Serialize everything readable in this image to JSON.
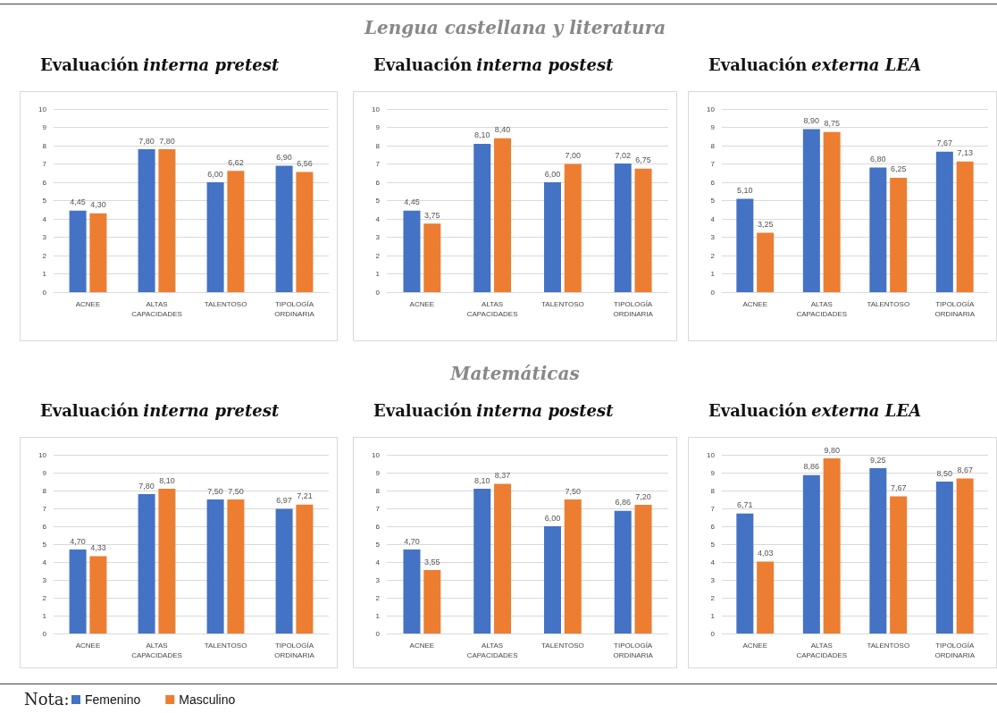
{
  "chart_data": [
    {
      "type": "bar",
      "title": "Evaluación interna pretest",
      "categories": [
        "ACNEE",
        "ALTAS CAPACIDADES",
        "TALENTOSO",
        "TIPOLOGÍA ORDINARIA"
      ],
      "series": [
        {
          "color": "#4472c4",
          "values": [
            4.45,
            7.8,
            6.0,
            6.9
          ],
          "value_labels": [
            "4,45",
            "7,80",
            "6,00",
            "6,90"
          ]
        },
        {
          "color": "#ed7d31",
          "values": [
            4.3,
            7.8,
            6.62,
            6.56
          ],
          "value_labels": [
            "4,30",
            "7,80",
            "6,62",
            "6,56"
          ]
        }
      ],
      "ylim": [
        0,
        10
      ],
      "yticks": [
        0,
        1,
        2,
        3,
        4,
        5,
        6,
        7,
        8,
        9,
        10
      ],
      "grid": "y"
    },
    {
      "type": "bar",
      "title": "Evaluación interna postest",
      "annotations": [
        "Lengua castellana y literatura"
      ],
      "categories": [
        "ACNEE",
        "ALTAS CAPACIDADES",
        "TALENTOSO",
        "TIPOLOGÍA ORDINARIA"
      ],
      "series": [
        {
          "color": "#4472c4",
          "values": [
            4.45,
            8.1,
            6.0,
            7.02
          ],
          "value_labels": [
            "4,45",
            "8,10",
            "6,00",
            "7,02"
          ]
        },
        {
          "color": "#ed7d31",
          "values": [
            3.75,
            8.4,
            7.0,
            6.75
          ],
          "value_labels": [
            "3,75",
            "8,40",
            "7,00",
            "6,75"
          ]
        }
      ],
      "ylim": [
        0,
        10
      ],
      "yticks": [
        0,
        1,
        2,
        3,
        4,
        5,
        6,
        7,
        8,
        9,
        10
      ],
      "grid": "y"
    },
    {
      "type": "bar",
      "title": "Evaluación externa LEA",
      "categories": [
        "ACNEE",
        "ALTAS CAPACIDADES",
        "TALENTOSO",
        "TIPOLOGÍA ORDINARIA"
      ],
      "series": [
        {
          "color": "#4472c4",
          "values": [
            5.1,
            8.9,
            6.8,
            7.67
          ],
          "value_labels": [
            "5,10",
            "8,90",
            "6,80",
            "7,67"
          ]
        },
        {
          "color": "#ed7d31",
          "values": [
            3.25,
            8.75,
            6.25,
            7.13
          ],
          "value_labels": [
            "3,25",
            "8,75",
            "6,25",
            "7,13"
          ]
        }
      ],
      "ylim": [
        0,
        10
      ],
      "yticks": [
        0,
        1,
        2,
        3,
        4,
        5,
        6,
        7,
        8,
        9,
        10
      ],
      "grid": "y"
    },
    {
      "type": "bar",
      "title": "Evaluación interna pretest",
      "annotations": [
        "Nota:"
      ],
      "categories": [
        "ACNEE",
        "ALTAS CAPACIDADES",
        "TALENTOSO",
        "TIPOLOGÍA ORDINARIA"
      ],
      "series": [
        {
          "name": "Femenino",
          "color": "#4472c4",
          "values": [
            4.7,
            7.8,
            7.5,
            6.97
          ],
          "value_labels": [
            "4,70",
            "7,80",
            "7,50",
            "6,97"
          ]
        },
        {
          "name": "Masculino",
          "color": "#ed7d31",
          "values": [
            4.33,
            8.1,
            7.5,
            7.21
          ],
          "value_labels": [
            "4,33",
            "8,10",
            "7,50",
            "7,21"
          ]
        }
      ],
      "ylim": [
        0,
        10
      ],
      "yticks": [
        0,
        1,
        2,
        3,
        4,
        5,
        6,
        7,
        8,
        9,
        10
      ],
      "grid": "y",
      "legend": "bottom"
    },
    {
      "type": "bar",
      "title": "Evaluación interna postest",
      "annotations": [
        "Matemáticas"
      ],
      "categories": [
        "ACNEE",
        "ALTAS CAPACIDADES",
        "TALENTOSO",
        "TIPOLOGÍA ORDINARIA"
      ],
      "series": [
        {
          "color": "#4472c4",
          "values": [
            4.7,
            8.1,
            6.0,
            6.86
          ],
          "value_labels": [
            "4,70",
            "8,10",
            "6,00",
            "6,86"
          ]
        },
        {
          "color": "#ed7d31",
          "values": [
            3.55,
            8.37,
            7.5,
            7.2
          ],
          "value_labels": [
            "3,55",
            "8,37",
            "7,50",
            "7,20"
          ]
        }
      ],
      "ylim": [
        0,
        10
      ],
      "yticks": [
        0,
        1,
        2,
        3,
        4,
        5,
        6,
        7,
        8,
        9,
        10
      ],
      "grid": "y"
    },
    {
      "type": "bar",
      "title": "Evaluación externa LEA",
      "categories": [
        "ACNEE",
        "ALTAS CAPACIDADES",
        "TALENTOSO",
        "TIPOLOGÍA ORDINARIA"
      ],
      "series": [
        {
          "color": "#4472c4",
          "values": [
            6.71,
            8.86,
            9.25,
            8.5
          ],
          "value_labels": [
            "6,71",
            "8,86",
            "9,25",
            "8,50"
          ]
        },
        {
          "color": "#ed7d31",
          "values": [
            4.03,
            9.8,
            7.67,
            8.67
          ],
          "value_labels": [
            "4,03",
            "9,80",
            "7,67",
            "8,67"
          ]
        }
      ],
      "ylim": [
        0,
        10
      ],
      "yticks": [
        0,
        1,
        2,
        3,
        4,
        5,
        6,
        7,
        8,
        9,
        10
      ],
      "grid": "y"
    }
  ]
}
